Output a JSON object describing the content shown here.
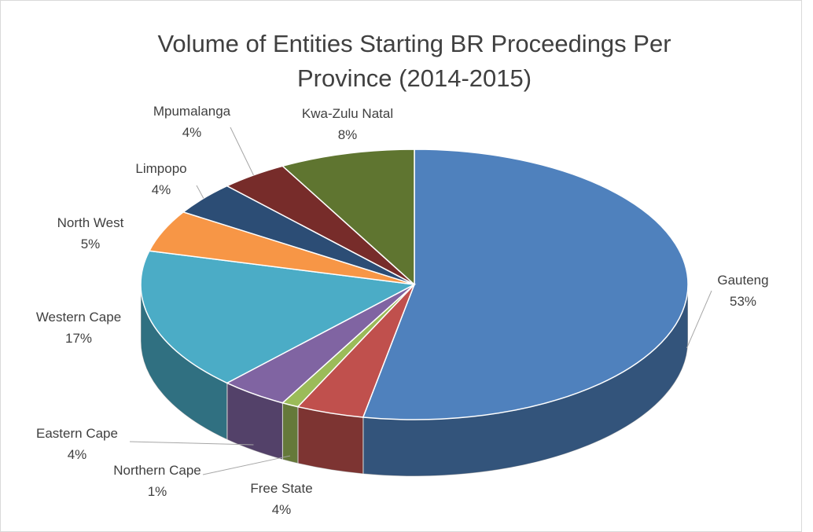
{
  "chart_data": {
    "type": "pie3d",
    "title": "Volume of Entities Starting BR Proceedings Per Province (2014-2015)",
    "categories": [
      "Gauteng",
      "Free State",
      "Northern Cape",
      "Eastern Cape",
      "Western Cape",
      "North West",
      "Limpopo",
      "Mpumalanga",
      "Kwa-Zulu Natal"
    ],
    "values": [
      53,
      4,
      1,
      4,
      17,
      5,
      4,
      4,
      8
    ],
    "value_labels": [
      "53%",
      "4%",
      "1%",
      "4%",
      "17%",
      "5%",
      "4%",
      "4%",
      "8%"
    ],
    "colors": [
      "#4f81bd",
      "#c0504d",
      "#9bbb59",
      "#8064a2",
      "#4bacc6",
      "#f79646",
      "#2c4d75",
      "#772c2a",
      "#5f7530"
    ]
  }
}
